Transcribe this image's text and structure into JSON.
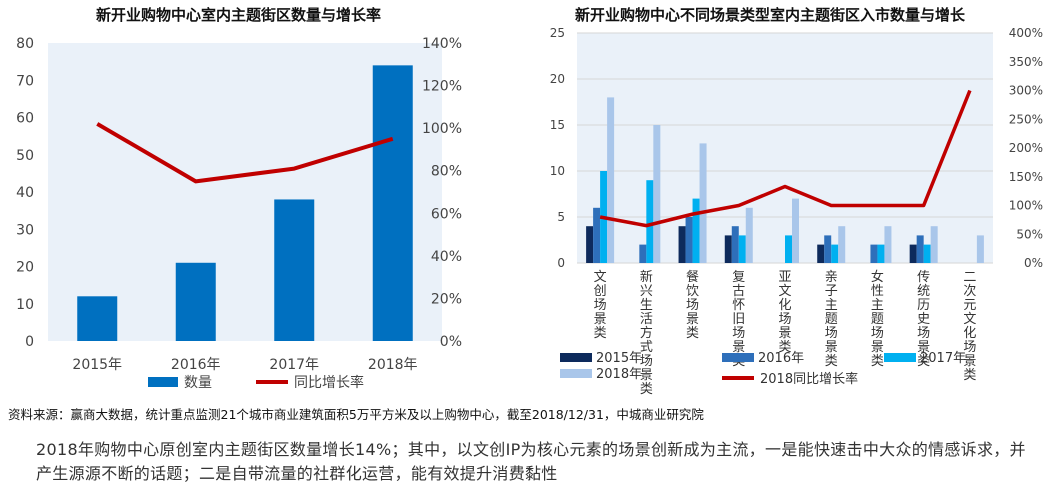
{
  "page": {
    "source": "资料来源：赢商大数据，统计重点监测21个城市商业建筑面积5万平方米及以上购物中心，截至2018/12/31，中城商业研究院",
    "summary": "2018年购物中心原创室内主题街区数量增长14%；其中，以文创IP为核心元素的场景创新成为主流，一是能快速击中大众的情感诉求，并产生源源不断的话题；二是自带流量的社群化运营，能有效提升消费黏性"
  },
  "colors": {
    "bar_primary": "#0070c0",
    "line": "#c00000",
    "s2015": "#0d2a5c",
    "s2016": "#2e6fba",
    "s2017": "#00b0f0",
    "s2018": "#a9c6ea",
    "plot_bg": "#eaf1f9"
  },
  "chart_data": [
    {
      "type": "bar",
      "title": "新开业购物中心室内主题街区数量与增长率",
      "categories": [
        "2015年",
        "2016年",
        "2017年",
        "2018年"
      ],
      "series": [
        {
          "name": "数量",
          "kind": "bar",
          "axis": "left",
          "values": [
            12,
            21,
            38,
            74
          ]
        },
        {
          "name": "同比增长率",
          "kind": "line",
          "axis": "right",
          "values": [
            102,
            75,
            81,
            95
          ]
        }
      ],
      "ylim": [
        0,
        80
      ],
      "yticks": [
        "0",
        "10",
        "20",
        "30",
        "40",
        "50",
        "60",
        "70",
        "80"
      ],
      "y2lim": [
        0,
        140
      ],
      "y2ticks": [
        "0%",
        "20%",
        "40%",
        "60%",
        "80%",
        "100%",
        "120%",
        "140%"
      ],
      "legend": "bottom"
    },
    {
      "type": "bar",
      "title": "新开业购物中心不同场景类型室内主题街区入市数量与增长",
      "categories": [
        "文创场景类",
        "新兴生活方式场景类",
        "餐饮场景类",
        "复古怀旧场景类",
        "亚文化场景类",
        "亲子主题场景类",
        "女性主题场景类",
        "传统历史场景类",
        "二次元文化场景类"
      ],
      "series": [
        {
          "name": "2015年",
          "kind": "bar",
          "axis": "left",
          "values": [
            4,
            0,
            4,
            3,
            0,
            2,
            0,
            2,
            0
          ]
        },
        {
          "name": "2016年",
          "kind": "bar",
          "axis": "left",
          "values": [
            6,
            2,
            5,
            4,
            0,
            3,
            2,
            3,
            0
          ]
        },
        {
          "name": "2017年",
          "kind": "bar",
          "axis": "left",
          "values": [
            10,
            9,
            7,
            3,
            3,
            2,
            2,
            2,
            0
          ]
        },
        {
          "name": "2018年",
          "kind": "bar",
          "axis": "left",
          "values": [
            18,
            15,
            13,
            6,
            7,
            4,
            4,
            4,
            3
          ]
        },
        {
          "name": "2018同比增长率",
          "kind": "line",
          "axis": "right",
          "values": [
            80,
            65,
            85,
            100,
            133,
            100,
            100,
            100,
            300
          ]
        }
      ],
      "ylim": [
        0,
        25
      ],
      "yticks": [
        "0",
        "5",
        "10",
        "15",
        "20",
        "25"
      ],
      "y2lim": [
        0,
        400
      ],
      "y2ticks": [
        "0%",
        "50%",
        "100%",
        "150%",
        "200%",
        "250%",
        "300%",
        "350%",
        "400%"
      ],
      "legend": "bottom"
    }
  ]
}
